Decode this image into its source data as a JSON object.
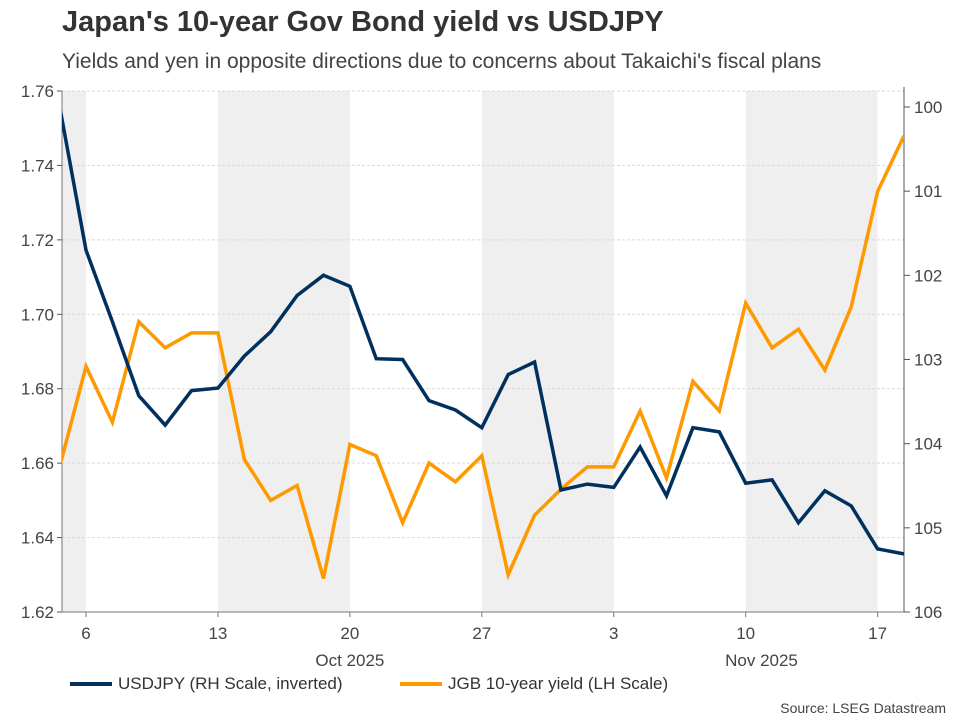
{
  "header": {
    "title": "Japan's 10-year Gov Bond yield vs USDJPY",
    "subtitle": "Yields and yen in opposite directions due to concerns about Takaichi's fiscal plans"
  },
  "footer": {
    "source": "Source: LSEG Datastream"
  },
  "chart_data": {
    "type": "line",
    "title": "Japan's 10-year Gov Bond yield vs USDJPY",
    "x": [
      "Oct 3",
      "Oct 6",
      "Oct 7",
      "Oct 8",
      "Oct 9",
      "Oct 10",
      "Oct 13",
      "Oct 14",
      "Oct 15",
      "Oct 16",
      "Oct 17",
      "Oct 20",
      "Oct 21",
      "Oct 22",
      "Oct 23",
      "Oct 24",
      "Oct 27",
      "Oct 28",
      "Oct 29",
      "Oct 30",
      "Oct 31",
      "Nov 3",
      "Nov 4",
      "Nov 5",
      "Nov 6",
      "Nov 7",
      "Nov 10",
      "Nov 11",
      "Nov 12",
      "Nov 13",
      "Nov 14",
      "Nov 17",
      "Nov 18"
    ],
    "x_ticks": [
      {
        "index": 1,
        "label": "6"
      },
      {
        "index": 6,
        "label": "13"
      },
      {
        "index": 11,
        "label": "20"
      },
      {
        "index": 16,
        "label": "27"
      },
      {
        "index": 21,
        "label": "3"
      },
      {
        "index": 26,
        "label": "10"
      },
      {
        "index": 31,
        "label": "17"
      }
    ],
    "month_labels": [
      {
        "index": 11,
        "label": "Oct 2025"
      },
      {
        "index": 26.6,
        "label": "Nov 2025"
      }
    ],
    "shaded_weeks": [
      [
        0.09,
        1
      ],
      [
        6,
        11
      ],
      [
        16,
        21
      ],
      [
        26,
        31
      ]
    ],
    "left_axis": {
      "ylim": [
        1.62,
        1.76
      ],
      "ticks": [
        "1.62",
        "1.64",
        "1.66",
        "1.68",
        "1.70",
        "1.72",
        "1.74",
        "1.76"
      ]
    },
    "right_axis": {
      "ylim": [
        99.81,
        106
      ],
      "inverted": true,
      "ticks": [
        "100",
        "101",
        "102",
        "103",
        "104",
        "105",
        "106"
      ]
    },
    "grid": true,
    "legend_position": "bottom",
    "series": [
      {
        "name": "USDJPY (RH Scale, inverted)",
        "axis": "right",
        "color": "#00315e",
        "values": [
          99.99,
          101.7,
          102.55,
          103.43,
          103.78,
          103.37,
          103.34,
          102.96,
          102.67,
          102.24,
          102.0,
          102.13,
          102.99,
          103.0,
          103.49,
          103.6,
          103.81,
          103.18,
          103.03,
          104.55,
          104.48,
          104.52,
          104.04,
          104.62,
          103.81,
          103.86,
          104.47,
          104.43,
          104.94,
          104.56,
          104.74,
          105.25,
          105.31
        ]
      },
      {
        "name": "JGB 10-year yield (LH Scale)",
        "axis": "left",
        "color": "#ff9900",
        "values": [
          1.659,
          1.686,
          1.671,
          1.698,
          1.691,
          1.695,
          1.695,
          1.661,
          1.65,
          1.654,
          1.629,
          1.665,
          1.662,
          1.644,
          1.66,
          1.655,
          1.662,
          1.63,
          1.646,
          1.653,
          1.659,
          1.659,
          1.674,
          1.656,
          1.682,
          1.674,
          1.703,
          1.691,
          1.696,
          1.685,
          1.702,
          1.733,
          1.748
        ]
      }
    ]
  }
}
